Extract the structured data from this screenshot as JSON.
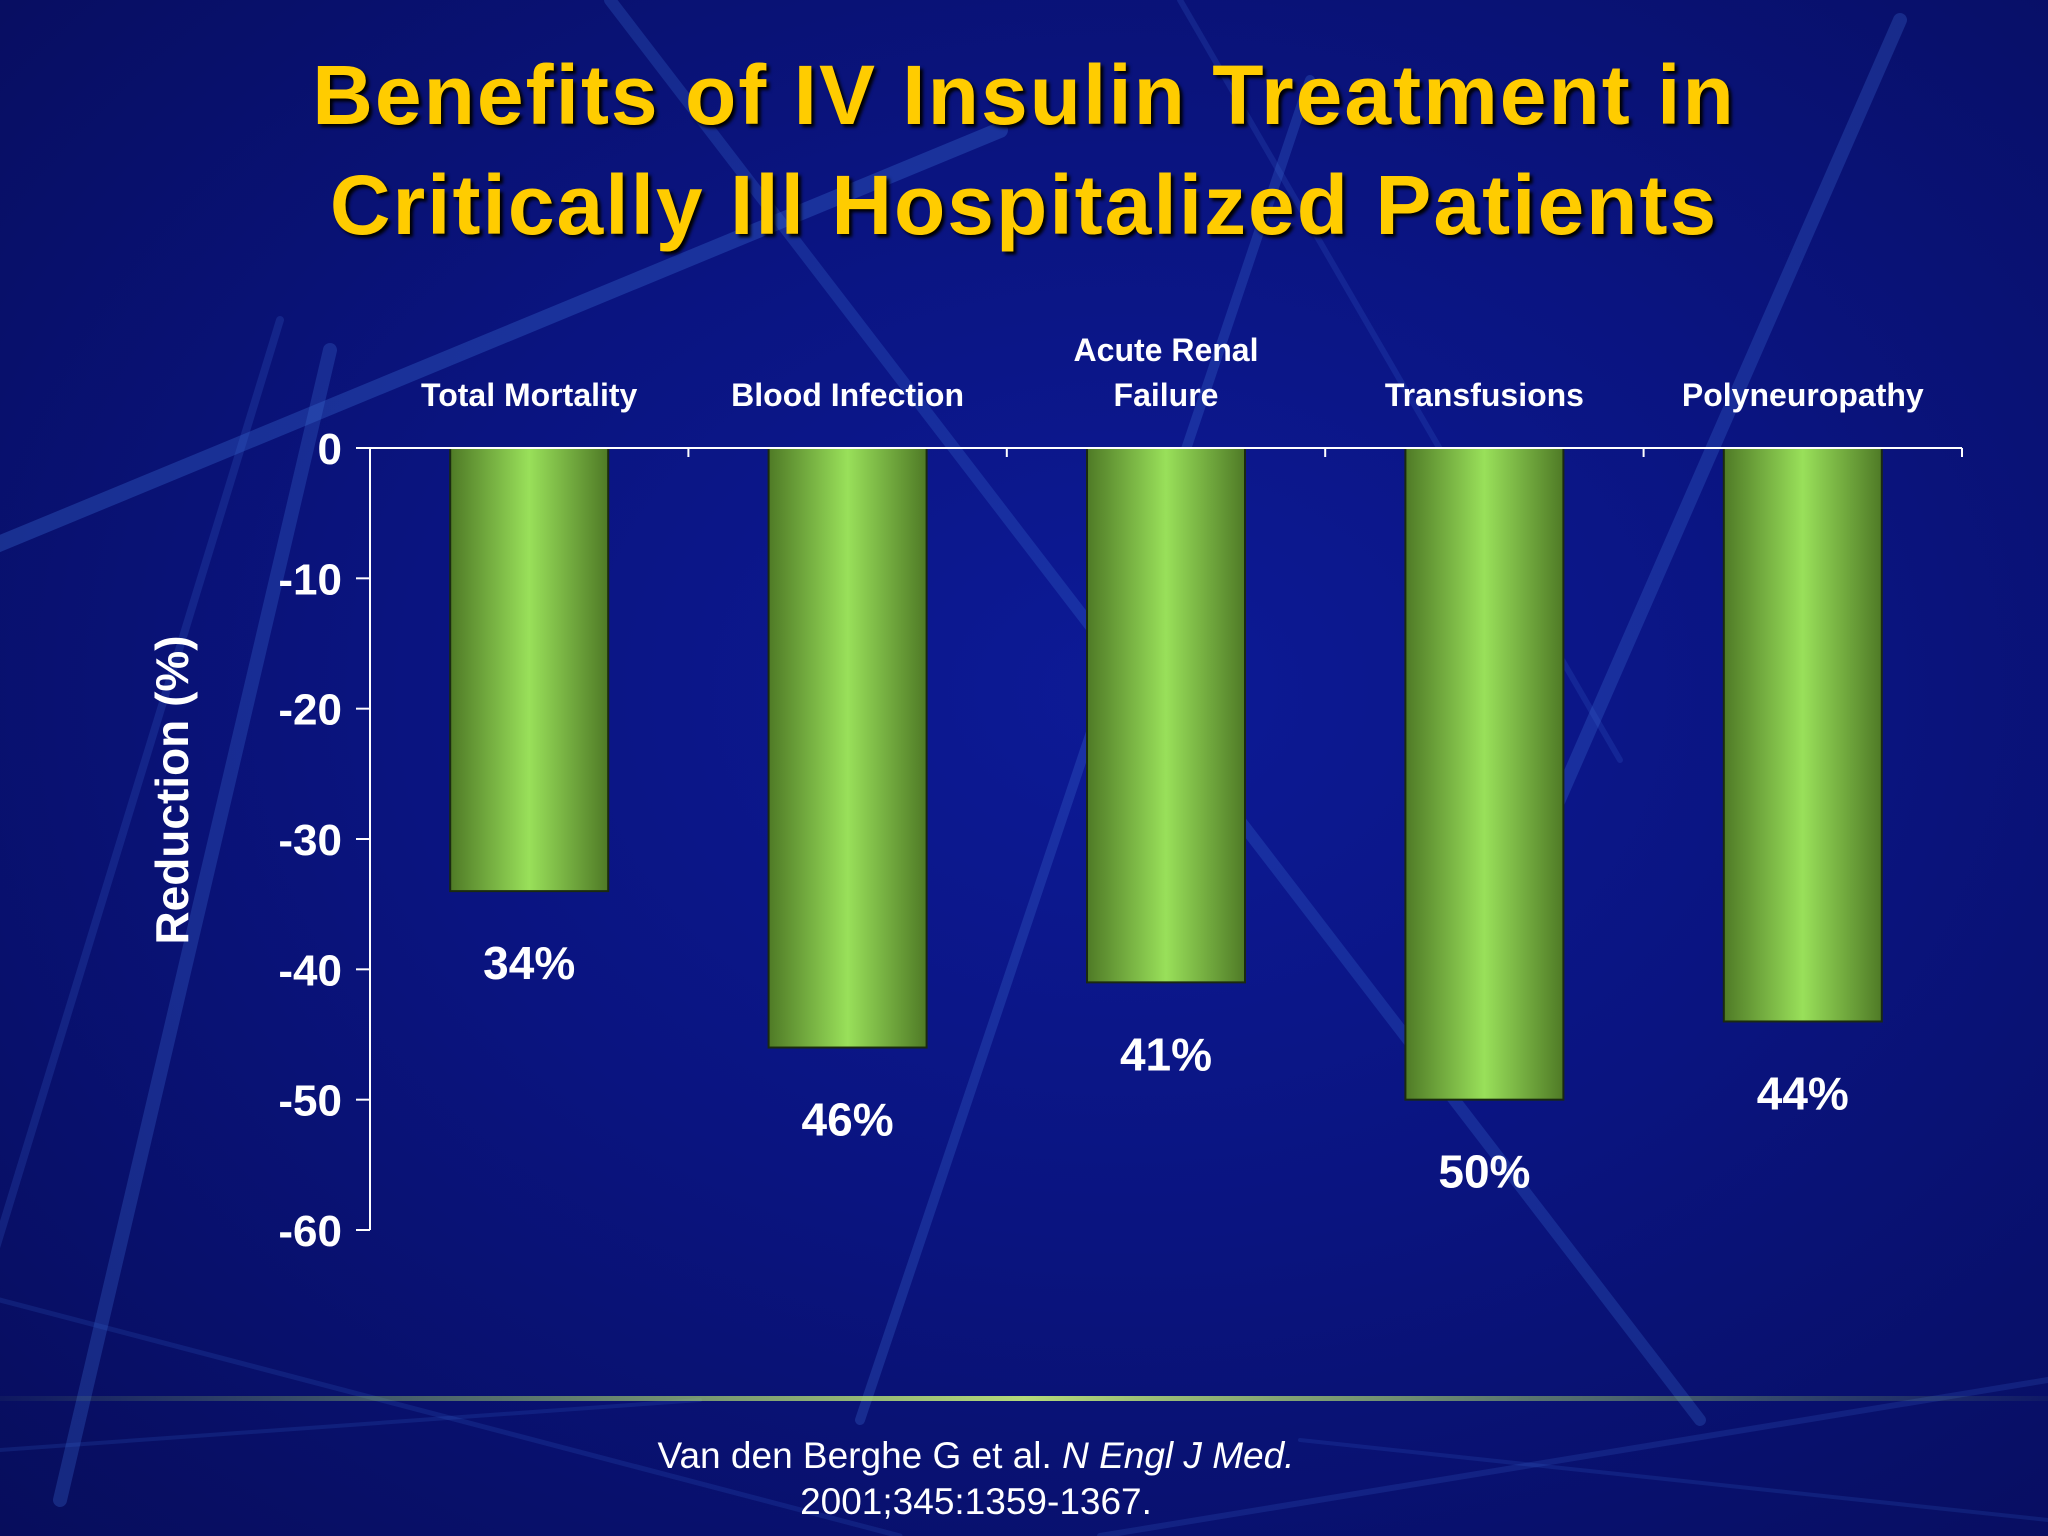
{
  "slide": {
    "title_line1": "Benefits of IV Insulin Treatment in",
    "title_line2": "Critically Ill Hospitalized Patients",
    "citation_authors": "Van den Berghe G et al.",
    "citation_journal": "N Engl J Med.",
    "citation_detail": "2001;345:1359-1367."
  },
  "colors": {
    "background": "#0a1278",
    "title": "#ffcc00",
    "bar_light": "#99e05a",
    "bar_dark": "#4f7a26",
    "text": "#ffffff"
  },
  "chart_data": {
    "type": "bar",
    "categories": [
      [
        "Total Mortality"
      ],
      [
        "Blood Infection"
      ],
      [
        "Acute Renal",
        "Failure"
      ],
      [
        "Transfusions"
      ],
      [
        "Polyneuropathy"
      ]
    ],
    "values": [
      -34,
      -46,
      -41,
      -50,
      -44
    ],
    "data_labels": [
      "34%",
      "46%",
      "41%",
      "50%",
      "44%"
    ],
    "ylabel": "Reduction (%)",
    "ylim": [
      -60,
      0
    ],
    "yticks": [
      0,
      -10,
      -20,
      -30,
      -40,
      -50,
      -60
    ],
    "category_axis_position": "top",
    "grid": false,
    "legend": "none"
  }
}
